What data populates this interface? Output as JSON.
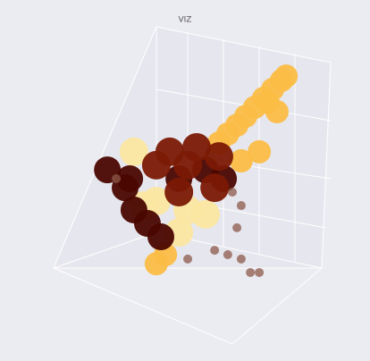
{
  "chart_data": {
    "type": "scatter",
    "title": "VIZ",
    "xlim": [
      0,
      10
    ],
    "ylim": [
      0,
      10
    ],
    "series": [
      {
        "color": "#fbbd45",
        "x": [
          7.97,
          7.66,
          7.34,
          7.03,
          7.5,
          6.72,
          6.41,
          6.09,
          5.78,
          7.19,
          8.13,
          7.81,
          6.56,
          3.59,
          3.91
        ],
        "values": [
          8.57,
          8.29,
          8.0,
          7.71,
          7.86,
          7.43,
          7.14,
          6.86,
          6.57,
          6.29,
          8.71,
          7.57,
          6.0,
          2.71,
          3.0
        ]
      },
      {
        "color": "#fbe7a1",
        "x": [
          2.81,
          3.59,
          4.69,
          5.31,
          4.38,
          3.13
        ],
        "values": [
          6.29,
          4.71,
          4.43,
          4.29,
          3.71,
          4.57
        ]
      },
      {
        "color": "#4a0600",
        "x": [
          2.5,
          2.81,
          3.28,
          3.75,
          2.66,
          1.88,
          4.38,
          5.31,
          5.94
        ],
        "values": [
          5.14,
          4.43,
          4.0,
          3.57,
          5.43,
          5.71,
          5.43,
          5.71,
          5.43
        ]
      },
      {
        "color": "#7b1a05",
        "x": [
          4.06,
          5.0,
          5.78,
          4.69,
          3.59,
          5.63,
          4.38
        ],
        "values": [
          6.29,
          6.43,
          6.14,
          5.86,
          5.86,
          5.14,
          5.0
        ]
      },
      {
        "color": "#8c5a4a",
        "x": [
          5.63,
          6.09,
          6.56,
          6.88,
          7.19,
          6.41,
          6.56,
          4.69,
          2.19,
          6.25
        ],
        "values": [
          3.14,
          3.0,
          2.86,
          2.43,
          2.43,
          3.86,
          4.57,
          2.86,
          5.43,
          5.0
        ]
      }
    ]
  }
}
